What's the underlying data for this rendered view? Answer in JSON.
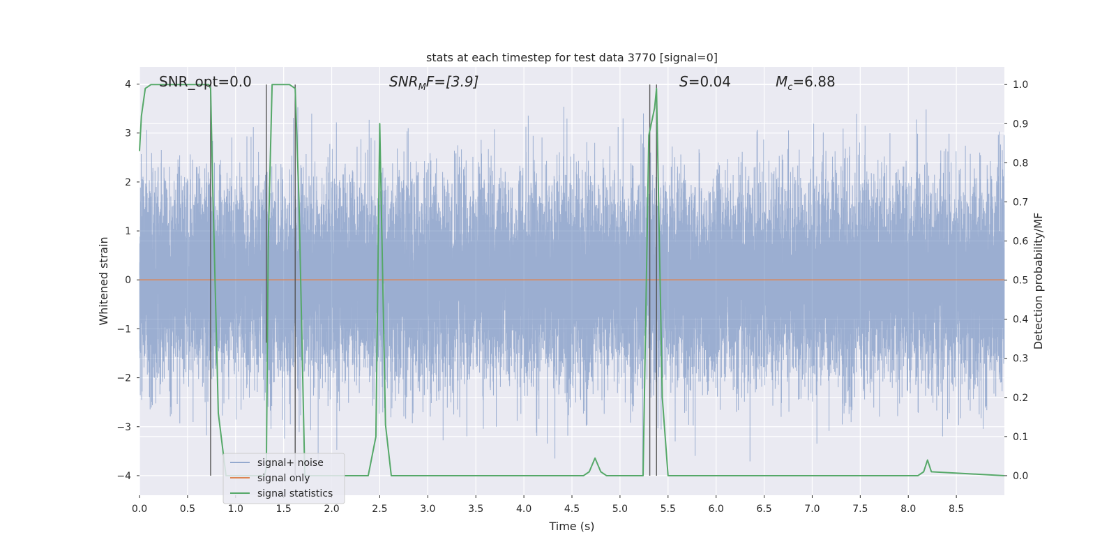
{
  "chart_data": {
    "type": "line",
    "title": "stats at each timestep for test data 3770 [signal=0]",
    "xlabel": "Time (s)",
    "ylabel": "Whitened strain",
    "y2label": "Detection probability/MF",
    "xlim": [
      0,
      9.0
    ],
    "ylim": [
      -4.4,
      4.35
    ],
    "y2lim": [
      -0.05,
      1.045
    ],
    "xticks": [
      0.0,
      0.5,
      1.0,
      1.5,
      2.0,
      2.5,
      3.0,
      3.5,
      4.0,
      4.5,
      5.0,
      5.5,
      6.0,
      6.5,
      7.0,
      7.5,
      8.0,
      8.5
    ],
    "xtick_labels": [
      "0.0",
      "0.5",
      "1.0",
      "1.5",
      "2.0",
      "2.5",
      "3.0",
      "3.5",
      "4.0",
      "4.5",
      "5.0",
      "5.5",
      "6.0",
      "6.5",
      "7.0",
      "7.5",
      "8.0",
      "8.5"
    ],
    "yticks": [
      4,
      3,
      2,
      1,
      0,
      -1,
      -2,
      -3,
      -4
    ],
    "ytick_labels": [
      "4",
      "3",
      "2",
      "1",
      "0",
      "−1",
      "−2",
      "−3",
      "−4"
    ],
    "y2ticks": [
      1.0,
      0.9,
      0.8,
      0.7,
      0.6,
      0.5,
      0.4,
      0.3,
      0.2,
      0.1,
      0.0
    ],
    "y2tick_labels": [
      "1.0",
      "0.9",
      "0.8",
      "0.7",
      "0.6",
      "0.5",
      "0.4",
      "0.3",
      "0.2",
      "0.1",
      "0.0"
    ],
    "grid": true,
    "legend_position": "lower-left",
    "annotations": [
      {
        "text": "SNR_opt=0.0",
        "x": 0.2
      },
      {
        "text": "SNR_MF=[3.9]",
        "x": 2.6,
        "parts": [
          "SNR",
          "M",
          "F=[3.9]"
        ]
      },
      {
        "text": "S=0.04",
        "x": 5.6,
        "parts": [
          "S",
          "=0.04"
        ]
      },
      {
        "text": "M_c=6.88",
        "x": 6.6,
        "parts": [
          "M",
          "c",
          "=6.88"
        ]
      }
    ],
    "series": [
      {
        "name": "signal+ noise",
        "color": "#4c72b0",
        "kind": "noise",
        "sample_rate": 2048,
        "amplitude_sigma": 1.0,
        "envelope_max": 4.0
      },
      {
        "name": "signal only",
        "color": "#dd8452",
        "x": [
          0.0,
          9.0
        ],
        "y": [
          0.0,
          0.0
        ]
      },
      {
        "name": "signal statistics",
        "color": "#55a868",
        "x": [
          0.0,
          0.02,
          0.06,
          0.12,
          0.62,
          0.72,
          0.74,
          0.76,
          0.82,
          0.9,
          1.3,
          1.32,
          1.34,
          1.38,
          1.44,
          1.56,
          1.62,
          1.66,
          1.72,
          1.76,
          2.38,
          2.46,
          2.5,
          2.56,
          2.62,
          4.62,
          4.68,
          4.74,
          4.8,
          4.86,
          5.24,
          5.3,
          5.36,
          5.38,
          5.44,
          5.5,
          8.1,
          8.16,
          8.2,
          8.24,
          9.0
        ],
        "y": [
          0.83,
          0.92,
          0.99,
          1.0,
          1.0,
          1.0,
          0.99,
          0.76,
          0.16,
          0.0,
          0.0,
          0.02,
          0.6,
          1.0,
          1.0,
          1.0,
          0.99,
          0.7,
          0.0,
          0.0,
          0.0,
          0.1,
          0.9,
          0.13,
          0.0,
          0.0,
          0.01,
          0.045,
          0.01,
          0.0,
          0.0,
          0.87,
          0.94,
          0.99,
          0.2,
          0.0,
          0.0,
          0.01,
          0.04,
          0.01,
          0.0
        ]
      }
    ],
    "vlines": [
      {
        "x": 0.74,
        "y2": [
          0.0,
          1.0
        ]
      },
      {
        "x": 1.32,
        "y2": [
          0.34,
          1.0
        ]
      },
      {
        "x": 1.62,
        "y2": [
          0.0,
          1.0
        ]
      },
      {
        "x": 5.31,
        "y2": [
          0.0,
          1.0
        ]
      },
      {
        "x": 5.38,
        "y2": [
          0.0,
          1.0
        ]
      }
    ]
  }
}
